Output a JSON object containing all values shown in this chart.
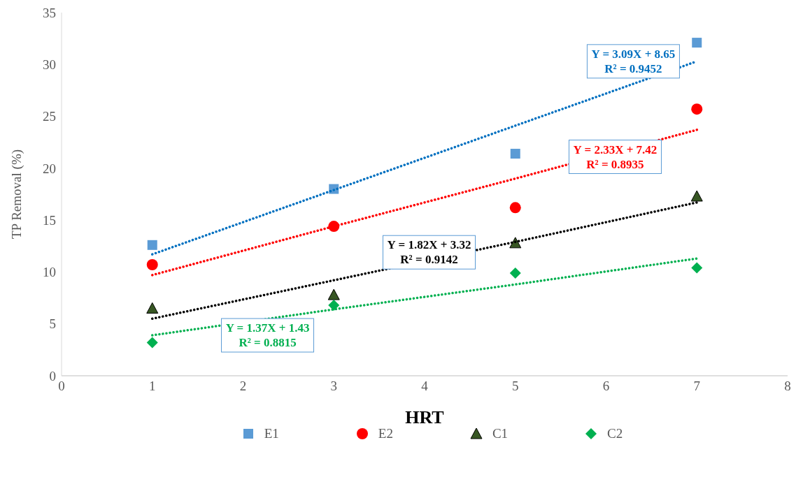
{
  "chart_data": {
    "type": "scatter",
    "xlabel": "HRT",
    "ylabel": "TP Removal  (%)",
    "x": [
      1,
      3,
      5,
      7
    ],
    "xlim": [
      0,
      8
    ],
    "xticks": [
      0,
      1,
      2,
      3,
      4,
      5,
      6,
      7,
      8
    ],
    "ylim": [
      0,
      35
    ],
    "yticks": [
      0,
      5,
      10,
      15,
      20,
      25,
      30,
      35
    ],
    "grid": false,
    "legend": "bottom",
    "series": [
      {
        "name": "E1",
        "color": "#5b9bd5",
        "marker": "square",
        "values": [
          12.6,
          18.0,
          21.4,
          32.1
        ]
      },
      {
        "name": "E2",
        "color": "#ff0000",
        "marker": "circle",
        "values": [
          10.7,
          14.4,
          16.2,
          25.7
        ]
      },
      {
        "name": "C1",
        "color": "#375623",
        "marker": "triangle",
        "values": [
          6.5,
          7.8,
          12.8,
          17.3
        ]
      },
      {
        "name": "C2",
        "color": "#00b050",
        "marker": "diamond",
        "values": [
          3.2,
          6.8,
          9.9,
          10.4
        ]
      },
      {
        "type": "line",
        "color": "#0070c0",
        "line_style": "dotted",
        "values": [
          11.7,
          17.9,
          24.1,
          30.3
        ]
      },
      {
        "type": "line",
        "color": "#ff0000",
        "line_style": "dotted",
        "values": [
          9.7,
          14.4,
          19.0,
          23.7
        ]
      },
      {
        "type": "line",
        "color": "#000000",
        "line_style": "dotted",
        "values": [
          5.5,
          9.2,
          12.9,
          16.7
        ]
      },
      {
        "type": "line",
        "color": "#00b050",
        "line_style": "dotted",
        "values": [
          3.9,
          6.4,
          8.8,
          11.3
        ]
      }
    ],
    "annotations": [
      "Y = 3.09X + 8.65\nR² = 0.9452",
      "Y = 2.33X + 7.42\nR² = 0.8935",
      "Y = 1.82X + 3.32\nR² = 0.9142",
      "Y = 1.37X + 1.43\nR² = 0.8815"
    ]
  }
}
